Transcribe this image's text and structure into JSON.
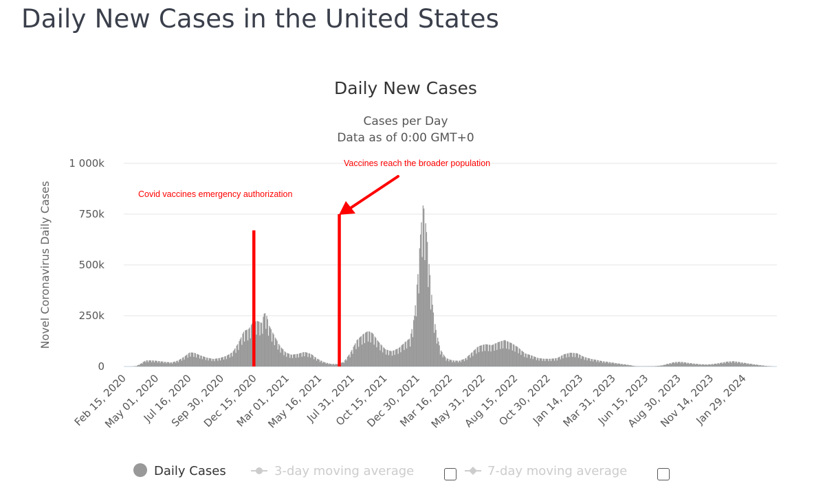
{
  "page": {
    "title": "Daily New Cases in the United States"
  },
  "chart_data": {
    "type": "bar",
    "title": "Daily New Cases",
    "subtitle_lines": [
      "Cases per Day",
      "Data as of 0:00 GMT+0"
    ],
    "xlabel": "",
    "ylabel": "Novel Coronavirus Daily Cases",
    "ylim": [
      0,
      1000000
    ],
    "y_ticks": [
      {
        "value": 0,
        "label": "0"
      },
      {
        "value": 250000,
        "label": "250k"
      },
      {
        "value": 500000,
        "label": "500k"
      },
      {
        "value": 750000,
        "label": "750k"
      },
      {
        "value": 1000000,
        "label": "1 000k"
      }
    ],
    "x_start": "2020-02-15",
    "x_end": "2024-04-15",
    "x_tick_labels": [
      {
        "date": "2020-02-15",
        "label": "Feb 15, 2020"
      },
      {
        "date": "2020-05-01",
        "label": "May 01, 2020"
      },
      {
        "date": "2020-07-16",
        "label": "Jul 16, 2020"
      },
      {
        "date": "2020-09-30",
        "label": "Sep 30, 2020"
      },
      {
        "date": "2020-12-15",
        "label": "Dec 15, 2020"
      },
      {
        "date": "2021-03-01",
        "label": "Mar 01, 2021"
      },
      {
        "date": "2021-05-16",
        "label": "May 16, 2021"
      },
      {
        "date": "2021-07-31",
        "label": "Jul 31, 2021"
      },
      {
        "date": "2021-10-15",
        "label": "Oct 15, 2021"
      },
      {
        "date": "2021-12-30",
        "label": "Dec 30, 2021"
      },
      {
        "date": "2022-03-16",
        "label": "Mar 16, 2022"
      },
      {
        "date": "2022-05-31",
        "label": "May 31, 2022"
      },
      {
        "date": "2022-08-15",
        "label": "Aug 15, 2022"
      },
      {
        "date": "2022-10-30",
        "label": "Oct 30, 2022"
      },
      {
        "date": "2023-01-14",
        "label": "Jan 14, 2023"
      },
      {
        "date": "2023-03-31",
        "label": "Mar 31, 2023"
      },
      {
        "date": "2023-06-15",
        "label": "Jun 15, 2023"
      },
      {
        "date": "2023-08-30",
        "label": "Aug 30, 2023"
      },
      {
        "date": "2023-11-14",
        "label": "Nov 14, 2023"
      },
      {
        "date": "2024-01-29",
        "label": "Jan 29, 2024"
      }
    ],
    "grid": true,
    "series": [
      {
        "name": "Daily Cases",
        "color": "#999999",
        "points": [
          [
            "2020-02-15",
            0
          ],
          [
            "2020-03-05",
            500
          ],
          [
            "2020-03-15",
            3000
          ],
          [
            "2020-03-25",
            15000
          ],
          [
            "2020-04-05",
            30000
          ],
          [
            "2020-04-20",
            30000
          ],
          [
            "2020-05-05",
            27000
          ],
          [
            "2020-05-20",
            23000
          ],
          [
            "2020-06-05",
            20000
          ],
          [
            "2020-06-20",
            30000
          ],
          [
            "2020-07-05",
            50000
          ],
          [
            "2020-07-17",
            70000
          ],
          [
            "2020-07-28",
            67000
          ],
          [
            "2020-08-10",
            55000
          ],
          [
            "2020-08-25",
            44000
          ],
          [
            "2020-09-10",
            37000
          ],
          [
            "2020-09-25",
            42000
          ],
          [
            "2020-10-10",
            52000
          ],
          [
            "2020-10-25",
            72000
          ],
          [
            "2020-11-08",
            120000
          ],
          [
            "2020-11-20",
            175000
          ],
          [
            "2020-12-01",
            185000
          ],
          [
            "2020-12-10",
            215000
          ],
          [
            "2020-12-20",
            225000
          ],
          [
            "2020-12-31",
            215000
          ],
          [
            "2021-01-06",
            260000
          ],
          [
            "2021-01-10",
            265000
          ],
          [
            "2021-01-18",
            200000
          ],
          [
            "2021-01-30",
            150000
          ],
          [
            "2021-02-12",
            100000
          ],
          [
            "2021-02-25",
            70000
          ],
          [
            "2021-03-10",
            58000
          ],
          [
            "2021-03-25",
            62000
          ],
          [
            "2021-04-10",
            72000
          ],
          [
            "2021-04-25",
            62000
          ],
          [
            "2021-05-10",
            38000
          ],
          [
            "2021-05-25",
            22000
          ],
          [
            "2021-06-10",
            13000
          ],
          [
            "2021-06-25",
            12000
          ],
          [
            "2021-07-10",
            22000
          ],
          [
            "2021-07-25",
            65000
          ],
          [
            "2021-08-10",
            130000
          ],
          [
            "2021-08-25",
            160000
          ],
          [
            "2021-09-05",
            175000
          ],
          [
            "2021-09-15",
            165000
          ],
          [
            "2021-09-30",
            120000
          ],
          [
            "2021-10-15",
            85000
          ],
          [
            "2021-10-30",
            75000
          ],
          [
            "2021-11-15",
            90000
          ],
          [
            "2021-11-30",
            120000
          ],
          [
            "2021-12-12",
            140000
          ],
          [
            "2021-12-22",
            250000
          ],
          [
            "2021-12-31",
            480000
          ],
          [
            "2022-01-05",
            650000
          ],
          [
            "2022-01-10",
            800000
          ],
          [
            "2022-01-14",
            770000
          ],
          [
            "2022-01-20",
            640000
          ],
          [
            "2022-01-27",
            450000
          ],
          [
            "2022-02-03",
            280000
          ],
          [
            "2022-02-10",
            180000
          ],
          [
            "2022-02-20",
            85000
          ],
          [
            "2022-03-05",
            42000
          ],
          [
            "2022-03-20",
            30000
          ],
          [
            "2022-04-05",
            28000
          ],
          [
            "2022-04-20",
            40000
          ],
          [
            "2022-05-05",
            70000
          ],
          [
            "2022-05-20",
            100000
          ],
          [
            "2022-06-05",
            110000
          ],
          [
            "2022-06-20",
            105000
          ],
          [
            "2022-07-05",
            120000
          ],
          [
            "2022-07-20",
            130000
          ],
          [
            "2022-08-05",
            115000
          ],
          [
            "2022-08-20",
            95000
          ],
          [
            "2022-09-05",
            65000
          ],
          [
            "2022-09-20",
            55000
          ],
          [
            "2022-10-05",
            42000
          ],
          [
            "2022-10-20",
            38000
          ],
          [
            "2022-11-05",
            38000
          ],
          [
            "2022-11-20",
            42000
          ],
          [
            "2022-12-05",
            60000
          ],
          [
            "2022-12-20",
            68000
          ],
          [
            "2023-01-05",
            65000
          ],
          [
            "2023-01-20",
            48000
          ],
          [
            "2023-02-05",
            38000
          ],
          [
            "2023-02-20",
            32000
          ],
          [
            "2023-03-05",
            26000
          ],
          [
            "2023-03-20",
            22000
          ],
          [
            "2023-04-05",
            17000
          ],
          [
            "2023-04-20",
            12000
          ],
          [
            "2023-05-05",
            8000
          ],
          [
            "2023-05-20",
            2000
          ],
          [
            "2023-06-05",
            1000
          ],
          [
            "2023-07-05",
            2000
          ],
          [
            "2023-07-20",
            5000
          ],
          [
            "2023-08-05",
            14000
          ],
          [
            "2023-08-20",
            22000
          ],
          [
            "2023-09-05",
            23000
          ],
          [
            "2023-09-20",
            18000
          ],
          [
            "2023-10-05",
            14000
          ],
          [
            "2023-10-20",
            11000
          ],
          [
            "2023-11-05",
            10000
          ],
          [
            "2023-11-20",
            13000
          ],
          [
            "2023-12-05",
            18000
          ],
          [
            "2023-12-20",
            24000
          ],
          [
            "2024-01-05",
            26000
          ],
          [
            "2024-01-20",
            21000
          ],
          [
            "2024-02-05",
            16000
          ],
          [
            "2024-02-20",
            11000
          ],
          [
            "2024-03-05",
            7000
          ],
          [
            "2024-03-20",
            3000
          ],
          [
            "2024-04-05",
            500
          ],
          [
            "2024-04-15",
            0
          ]
        ]
      }
    ],
    "legend": {
      "placement": "bottom",
      "items": [
        {
          "label": "Daily Cases",
          "active": true,
          "color": "#999999"
        },
        {
          "label": "3-day moving average",
          "active": false,
          "color": "#cccccc",
          "checkbox": true
        },
        {
          "label": "7-day moving average",
          "active": false,
          "color": "#cccccc",
          "checkbox": true
        }
      ]
    },
    "annotations": [
      {
        "text": "Covid vaccines emergency authorization",
        "date": "2020-12-14",
        "value": 670000,
        "color": "#ff0000"
      },
      {
        "text": "Vaccines reach the broader population",
        "date": "2021-07-01",
        "value": 750000,
        "color": "#ff0000",
        "arrow": true
      }
    ]
  }
}
